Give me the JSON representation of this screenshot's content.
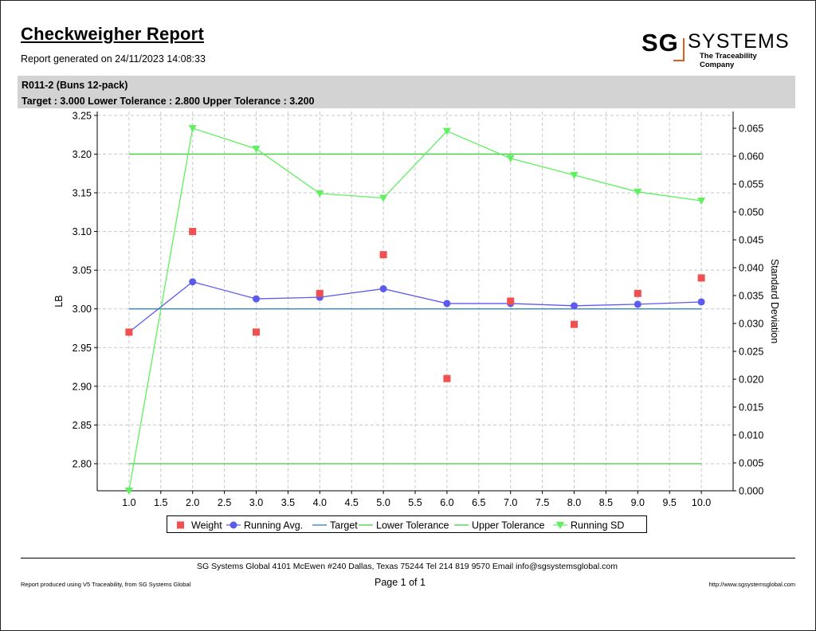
{
  "report": {
    "title": "Checkweigher Report",
    "generated": "Report generated on 24/11/2023 14:08:33"
  },
  "logo": {
    "sg": "SG",
    "systems": "SYSTEMS",
    "tagline": "The Traceability Company",
    "accent_color": "#e25a1c"
  },
  "banner": {
    "product": "R011-2 (Buns 12-pack)",
    "tolerances": "Target : 3.000 Lower Tolerance : 2.800 Upper Tolerance : 3.200"
  },
  "chart_data": {
    "type": "line",
    "title": "",
    "xlabel": "",
    "ylabel": "LB",
    "y2label": "Standard Deviation",
    "xlim": [
      0.5,
      10.5
    ],
    "ylim": [
      2.765,
      3.255
    ],
    "y2lim": [
      0.0,
      0.068
    ],
    "x_ticks": [
      "1.0",
      "1.5",
      "2.0",
      "2.5",
      "3.0",
      "3.5",
      "4.0",
      "4.5",
      "5.0",
      "5.5",
      "6.0",
      "6.5",
      "7.0",
      "7.5",
      "8.0",
      "8.5",
      "9.0",
      "9.5",
      "10.0"
    ],
    "y_ticks": [
      "2.80",
      "2.85",
      "2.90",
      "2.95",
      "3.00",
      "3.05",
      "3.10",
      "3.15",
      "3.20",
      "3.25"
    ],
    "y2_ticks": [
      "0.000",
      "0.005",
      "0.010",
      "0.015",
      "0.020",
      "0.025",
      "0.030",
      "0.035",
      "0.040",
      "0.045",
      "0.050",
      "0.055",
      "0.060",
      "0.065"
    ],
    "grid": true,
    "legend_position": "bottom",
    "x": [
      1,
      2,
      3,
      4,
      5,
      6,
      7,
      8,
      9,
      10
    ],
    "series": [
      {
        "name": "Weight",
        "axis": "left",
        "style": "square",
        "color": "#f05050",
        "values": [
          2.97,
          3.1,
          2.97,
          3.02,
          3.07,
          2.91,
          3.01,
          2.98,
          3.02,
          3.04
        ]
      },
      {
        "name": "Running Avg.",
        "axis": "left",
        "style": "line-circle",
        "color": "#5b5bef",
        "values": [
          2.97,
          3.035,
          3.013,
          3.015,
          3.026,
          3.007,
          3.007,
          3.004,
          3.006,
          3.009
        ]
      },
      {
        "name": "Target",
        "axis": "left",
        "style": "line",
        "color": "#2a7ab8",
        "values": [
          3.0,
          3.0,
          3.0,
          3.0,
          3.0,
          3.0,
          3.0,
          3.0,
          3.0,
          3.0
        ]
      },
      {
        "name": "Lower Tolerance",
        "axis": "left",
        "style": "line",
        "color": "#3ecf3e",
        "values": [
          2.8,
          2.8,
          2.8,
          2.8,
          2.8,
          2.8,
          2.8,
          2.8,
          2.8,
          2.8
        ]
      },
      {
        "name": "Upper Tolerance",
        "axis": "left",
        "style": "line",
        "color": "#3ecf3e",
        "values": [
          3.2,
          3.2,
          3.2,
          3.2,
          3.2,
          3.2,
          3.2,
          3.2,
          3.2,
          3.2
        ]
      },
      {
        "name": "Running SD",
        "axis": "right",
        "style": "line-triangle",
        "color": "#5ef05e",
        "values": [
          0.0,
          0.065,
          0.0613,
          0.0533,
          0.0525,
          0.0645,
          0.0596,
          0.0566,
          0.0536,
          0.052
        ]
      }
    ]
  },
  "footer": {
    "address": "SG Systems Global 4101 McEwen #240 Dallas, Texas 75244 Tel 214 819 9570 Email info@sgsystemsglobal.com",
    "produced": "Report produced using V5 Traceability, from SG Systems Global",
    "page": "Page 1 of 1",
    "url": "http://www.sgsystemsglobal.com"
  }
}
